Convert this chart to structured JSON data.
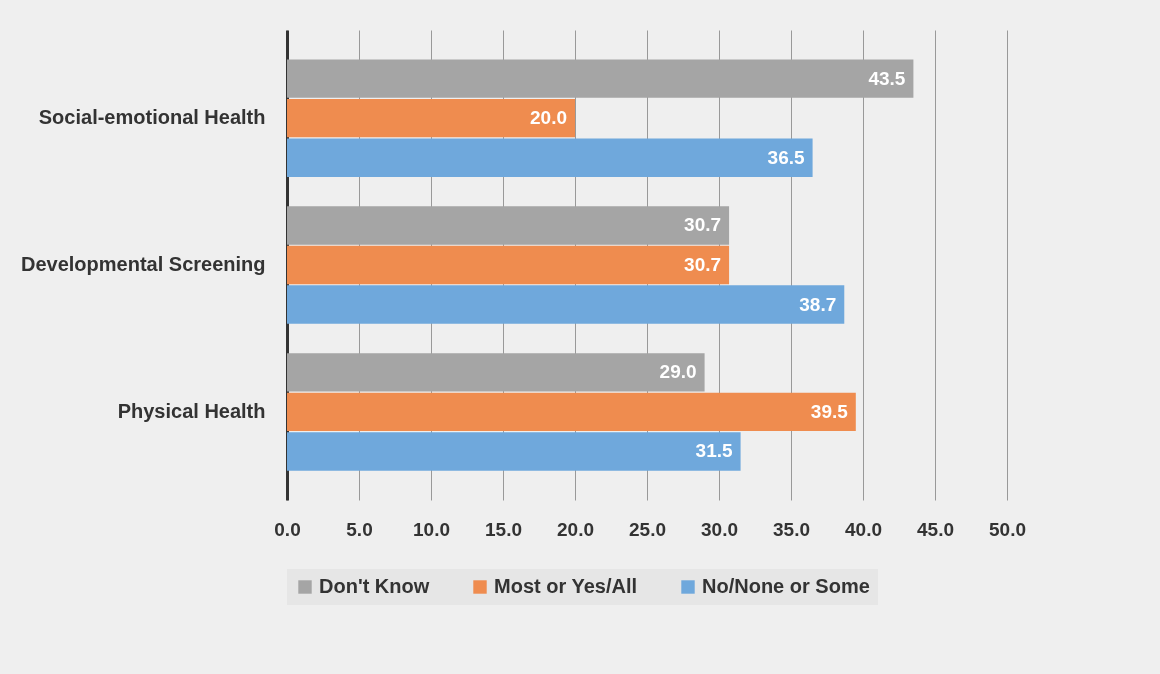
{
  "chart_data": {
    "type": "bar",
    "orientation": "horizontal",
    "categories": [
      "Social-emotional Health",
      "Developmental Screening",
      "Physical Health"
    ],
    "series": [
      {
        "name": "Don't Know",
        "color": "#a5a5a5",
        "values": [
          43.5,
          30.7,
          29.0
        ],
        "value_labels": [
          "43.5",
          "30.7",
          "29.0"
        ]
      },
      {
        "name": "Most or Yes/All",
        "color": "#ef8c4f",
        "values": [
          20.0,
          30.7,
          39.5
        ],
        "value_labels": [
          "20.0",
          "30.7",
          "39.5"
        ]
      },
      {
        "name": "No/None or Some",
        "color": "#6fa8dc",
        "values": [
          36.5,
          38.7,
          31.5
        ],
        "value_labels": [
          "36.5",
          "38.7",
          "31.5"
        ]
      }
    ],
    "xlim": [
      0,
      50
    ],
    "xticks": [
      {
        "value": 0,
        "label": "0.0"
      },
      {
        "value": 5,
        "label": "5.0"
      },
      {
        "value": 10,
        "label": "10.0"
      },
      {
        "value": 15,
        "label": "15.0"
      },
      {
        "value": 20,
        "label": "20.0"
      },
      {
        "value": 25,
        "label": "25.0"
      },
      {
        "value": 30,
        "label": "30.0"
      },
      {
        "value": 35,
        "label": "35.0"
      },
      {
        "value": 40,
        "label": "40.0"
      },
      {
        "value": 45,
        "label": "45.0"
      },
      {
        "value": 50,
        "label": "50.0"
      }
    ],
    "grid": "x",
    "legend": "bottom"
  }
}
